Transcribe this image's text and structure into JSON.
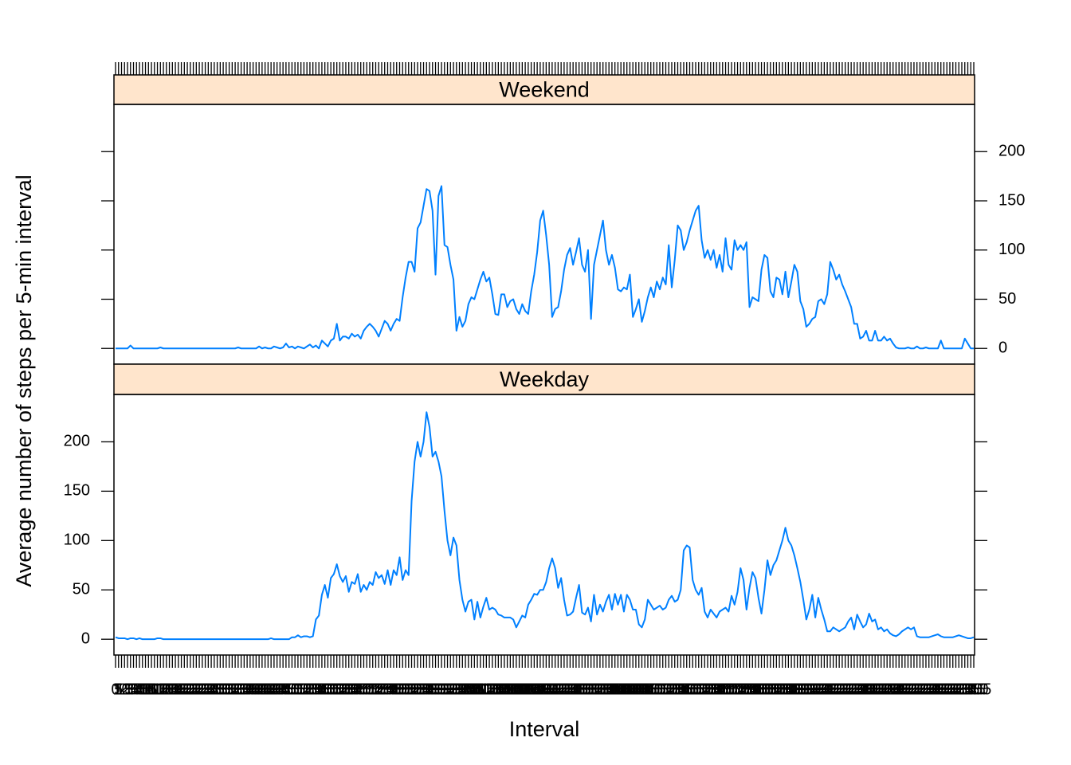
{
  "chart_data": {
    "type": "line",
    "x_label": "Interval",
    "y_label": "Average number of steps per 5-min interval",
    "categories": [
      "0",
      "5",
      "10",
      "15",
      "20",
      "25",
      "30",
      "35",
      "40",
      "45",
      "50",
      "55",
      "100",
      "105",
      "110",
      "115",
      "120",
      "125",
      "130",
      "135",
      "140",
      "145",
      "150",
      "155",
      "200",
      "205",
      "210",
      "215",
      "220",
      "225",
      "230",
      "235",
      "240",
      "245",
      "250",
      "255",
      "300",
      "305",
      "310",
      "315",
      "320",
      "325",
      "330",
      "335",
      "340",
      "345",
      "350",
      "355",
      "400",
      "405",
      "410",
      "415",
      "420",
      "425",
      "430",
      "435",
      "440",
      "445",
      "450",
      "455",
      "500",
      "505",
      "510",
      "515",
      "520",
      "525",
      "530",
      "535",
      "540",
      "545",
      "550",
      "555",
      "600",
      "605",
      "610",
      "615",
      "620",
      "625",
      "630",
      "635",
      "640",
      "645",
      "650",
      "655",
      "700",
      "705",
      "710",
      "715",
      "720",
      "725",
      "730",
      "735",
      "740",
      "745",
      "750",
      "755",
      "800",
      "805",
      "810",
      "815",
      "820",
      "825",
      "830",
      "835",
      "840",
      "845",
      "850",
      "855",
      "900",
      "905",
      "910",
      "915",
      "920",
      "925",
      "930",
      "935",
      "940",
      "945",
      "950",
      "955",
      "1000",
      "1005",
      "1010",
      "1015",
      "1020",
      "1025",
      "1030",
      "1035",
      "1040",
      "1045",
      "1050",
      "1055",
      "1100",
      "1105",
      "1110",
      "1115",
      "1120",
      "1125",
      "1130",
      "1135",
      "1140",
      "1145",
      "1150",
      "1155",
      "1200",
      "1205",
      "1210",
      "1215",
      "1220",
      "1225",
      "1230",
      "1235",
      "1240",
      "1245",
      "1250",
      "1255",
      "1300",
      "1305",
      "1310",
      "1315",
      "1320",
      "1325",
      "1330",
      "1335",
      "1340",
      "1345",
      "1350",
      "1355",
      "1400",
      "1405",
      "1410",
      "1415",
      "1420",
      "1425",
      "1430",
      "1435",
      "1440",
      "1445",
      "1450",
      "1455",
      "1500",
      "1505",
      "1510",
      "1515",
      "1520",
      "1525",
      "1530",
      "1535",
      "1540",
      "1545",
      "1550",
      "1555",
      "1600",
      "1605",
      "1610",
      "1615",
      "1620",
      "1625",
      "1630",
      "1635",
      "1640",
      "1645",
      "1650",
      "1655",
      "1700",
      "1705",
      "1710",
      "1715",
      "1720",
      "1725",
      "1730",
      "1735",
      "1740",
      "1745",
      "1750",
      "1755",
      "1800",
      "1805",
      "1810",
      "1815",
      "1820",
      "1825",
      "1830",
      "1835",
      "1840",
      "1845",
      "1850",
      "1855",
      "1900",
      "1905",
      "1910",
      "1915",
      "1920",
      "1925",
      "1930",
      "1935",
      "1940",
      "1945",
      "1950",
      "1955",
      "2000",
      "2005",
      "2010",
      "2015",
      "2020",
      "2025",
      "2030",
      "2035",
      "2040",
      "2045",
      "2050",
      "2055",
      "2100",
      "2105",
      "2110",
      "2115",
      "2120",
      "2125",
      "2130",
      "2135",
      "2140",
      "2145",
      "2150",
      "2155",
      "2200",
      "2205",
      "2210",
      "2215",
      "2220",
      "2225",
      "2230",
      "2235",
      "2240",
      "2245",
      "2250",
      "2255",
      "2300",
      "2305",
      "2310",
      "2315",
      "2320",
      "2325",
      "2330",
      "2335",
      "2340",
      "2345",
      "2350",
      "2355"
    ],
    "series": [
      {
        "name": "Weekend",
        "color": "#0080ff",
        "values": [
          0,
          0,
          0,
          0,
          0,
          3,
          0,
          0,
          0,
          0,
          0,
          0,
          0,
          0,
          0,
          1,
          0,
          0,
          0,
          0,
          0,
          0,
          0,
          0,
          0,
          0,
          0,
          0,
          0,
          0,
          0,
          0,
          0,
          0,
          0,
          0,
          0,
          0,
          0,
          0,
          0,
          1,
          0,
          0,
          0,
          0,
          0,
          0,
          2,
          0,
          1,
          0,
          0,
          2,
          1,
          0,
          1,
          5,
          1,
          2,
          0,
          2,
          1,
          0,
          2,
          4,
          1,
          3,
          0,
          8,
          5,
          2,
          8,
          10,
          25,
          8,
          12,
          12,
          10,
          15,
          12,
          14,
          10,
          18,
          22,
          25,
          22,
          18,
          12,
          20,
          28,
          25,
          18,
          25,
          30,
          28,
          52,
          72,
          88,
          88,
          78,
          122,
          128,
          145,
          162,
          160,
          140,
          75,
          155,
          165,
          105,
          103,
          85,
          70,
          18,
          32,
          22,
          28,
          45,
          52,
          50,
          60,
          70,
          78,
          68,
          72,
          55,
          35,
          34,
          55,
          55,
          42,
          48,
          50,
          40,
          35,
          45,
          38,
          35,
          58,
          75,
          98,
          130,
          140,
          115,
          85,
          32,
          40,
          42,
          58,
          80,
          95,
          102,
          85,
          98,
          112,
          85,
          78,
          100,
          30,
          85,
          100,
          115,
          130,
          100,
          85,
          95,
          82,
          60,
          58,
          62,
          60,
          75,
          32,
          40,
          50,
          27,
          38,
          52,
          62,
          52,
          68,
          60,
          72,
          65,
          105,
          62,
          90,
          125,
          120,
          100,
          108,
          120,
          130,
          140,
          145,
          110,
          92,
          100,
          90,
          100,
          82,
          95,
          78,
          112,
          85,
          80,
          110,
          100,
          105,
          100,
          108,
          42,
          52,
          50,
          48,
          80,
          95,
          92,
          58,
          52,
          72,
          70,
          55,
          78,
          52,
          68,
          85,
          78,
          48,
          40,
          22,
          25,
          30,
          32,
          48,
          50,
          45,
          55,
          88,
          80,
          70,
          75,
          65,
          58,
          50,
          42,
          25,
          25,
          10,
          12,
          18,
          8,
          8,
          18,
          8,
          8,
          12,
          8,
          10,
          5,
          1,
          0,
          0,
          0,
          1,
          0,
          0,
          2,
          0,
          0,
          1,
          0,
          0,
          0,
          0,
          8,
          0,
          0,
          0,
          0,
          0,
          0,
          0,
          10,
          5,
          0,
          0
        ]
      },
      {
        "name": "Weekday",
        "color": "#0080ff",
        "values": [
          2,
          1,
          1,
          1,
          0,
          1,
          1,
          0,
          1,
          0,
          0,
          0,
          0,
          0,
          1,
          1,
          0,
          0,
          0,
          0,
          0,
          0,
          0,
          0,
          0,
          0,
          0,
          0,
          0,
          0,
          0,
          0,
          0,
          0,
          0,
          0,
          0,
          0,
          0,
          0,
          0,
          0,
          0,
          0,
          0,
          0,
          0,
          0,
          0,
          0,
          0,
          0,
          1,
          0,
          0,
          0,
          0,
          0,
          0,
          2,
          2,
          4,
          2,
          3,
          3,
          2,
          3,
          20,
          24,
          45,
          55,
          42,
          62,
          66,
          76,
          64,
          58,
          64,
          48,
          58,
          56,
          66,
          48,
          55,
          50,
          58,
          55,
          68,
          62,
          65,
          56,
          70,
          55,
          70,
          65,
          83,
          60,
          70,
          65,
          140,
          180,
          200,
          185,
          200,
          230,
          215,
          185,
          190,
          180,
          165,
          130,
          100,
          85,
          103,
          95,
          60,
          40,
          28,
          38,
          40,
          20,
          38,
          22,
          33,
          42,
          30,
          32,
          30,
          25,
          24,
          22,
          22,
          22,
          20,
          12,
          18,
          24,
          22,
          35,
          40,
          46,
          45,
          50,
          50,
          58,
          72,
          82,
          72,
          52,
          62,
          40,
          24,
          25,
          28,
          42,
          55,
          27,
          25,
          32,
          18,
          45,
          25,
          35,
          28,
          38,
          45,
          30,
          46,
          35,
          45,
          28,
          45,
          40,
          30,
          30,
          15,
          12,
          20,
          40,
          35,
          30,
          32,
          34,
          30,
          32,
          40,
          44,
          38,
          40,
          50,
          90,
          95,
          93,
          60,
          50,
          45,
          52,
          28,
          22,
          30,
          26,
          22,
          28,
          30,
          32,
          28,
          44,
          35,
          48,
          72,
          60,
          30,
          52,
          68,
          62,
          42,
          26,
          50,
          80,
          65,
          75,
          80,
          90,
          100,
          113,
          100,
          95,
          85,
          72,
          58,
          40,
          20,
          30,
          45,
          22,
          42,
          30,
          20,
          8,
          8,
          12,
          10,
          8,
          10,
          12,
          18,
          22,
          10,
          25,
          18,
          12,
          15,
          26,
          18,
          20,
          10,
          12,
          8,
          10,
          6,
          4,
          3,
          5,
          8,
          10,
          12,
          10,
          12,
          3,
          2,
          2,
          2,
          2,
          3,
          4,
          5,
          3,
          2,
          2,
          2,
          2,
          3,
          4,
          3,
          2,
          1,
          1,
          2
        ]
      }
    ],
    "ylim": [
      -16,
      248
    ],
    "yticks": [
      0,
      50,
      100,
      150,
      200
    ],
    "strip_color": "#ffe5cc"
  }
}
